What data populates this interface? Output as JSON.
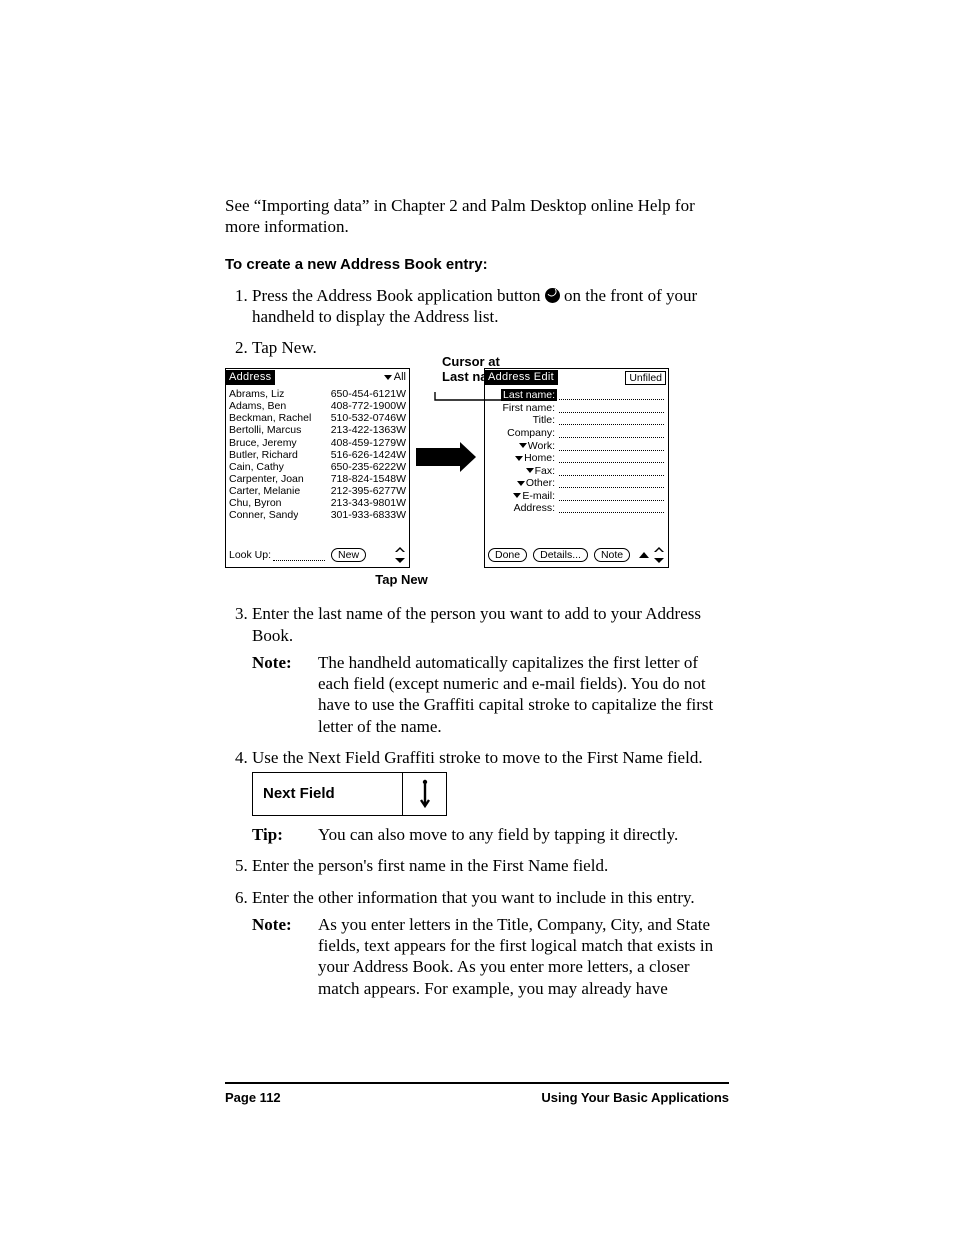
{
  "intro_text": "See “Importing data” in Chapter 2 and Palm Desktop online Help for more information.",
  "heading": "To create a new Address Book entry:",
  "steps": {
    "s1a": "Press the Address Book application button ",
    "s1b": " on the front of your handheld to display the Address list.",
    "s2": "Tap New.",
    "s3": "Enter the last name of the person you want to add to your Address Book.",
    "note3_label": "Note:",
    "note3_text": "The handheld automatically capitalizes the first letter of each field (except numeric and e-mail fields). You do not have to use the Graffiti capital stroke to capitalize the first letter of the name.",
    "s4": "Use the Next Field Graffiti stroke to move to the First Name field.",
    "tip_label": "Tip:",
    "tip_text": "You can also move to any field by tapping it directly.",
    "s5": "Enter the person's first name in the First Name field.",
    "s6": "Enter the other information that you want to include in this entry.",
    "note6_label": "Note:",
    "note6_text": "As you enter letters in the Title, Company, City, and State fields, text appears for the first logical match that exists in your Address Book. As you enter more letters, a closer match appears. For example, you may already have"
  },
  "annotations": {
    "cursor": "Cursor at Last name",
    "tap_new": "Tap New",
    "next_field": "Next Field"
  },
  "address_screen": {
    "title": "Address",
    "category": "All",
    "rows": [
      {
        "name": "Abrams, Liz",
        "num": "650-454-6121W"
      },
      {
        "name": "Adams, Ben",
        "num": "408-772-1900W"
      },
      {
        "name": "Beckman, Rachel",
        "num": "510-532-0746W"
      },
      {
        "name": "Bertolli, Marcus",
        "num": "213-422-1363W"
      },
      {
        "name": "Bruce, Jeremy",
        "num": "408-459-1279W"
      },
      {
        "name": "Butler, Richard",
        "num": "516-626-1424W"
      },
      {
        "name": "Cain, Cathy",
        "num": "650-235-6222W"
      },
      {
        "name": "Carpenter, Joan",
        "num": "718-824-1548W"
      },
      {
        "name": "Carter, Melanie",
        "num": "212-395-6277W"
      },
      {
        "name": "Chu, Byron",
        "num": "213-343-9801W"
      },
      {
        "name": "Conner, Sandy",
        "num": "301-933-6833W"
      }
    ],
    "lookup": "Look Up:",
    "new_btn": "New"
  },
  "edit_screen": {
    "title": "Address Edit",
    "category": "Unfiled",
    "fields": [
      {
        "label": "Last name:",
        "highlight": true,
        "dropdown": false
      },
      {
        "label": "First name:",
        "highlight": false,
        "dropdown": false
      },
      {
        "label": "Title:",
        "highlight": false,
        "dropdown": false
      },
      {
        "label": "Company:",
        "highlight": false,
        "dropdown": false
      },
      {
        "label": "Work:",
        "highlight": false,
        "dropdown": true
      },
      {
        "label": "Home:",
        "highlight": false,
        "dropdown": true
      },
      {
        "label": "Fax:",
        "highlight": false,
        "dropdown": true
      },
      {
        "label": "Other:",
        "highlight": false,
        "dropdown": true
      },
      {
        "label": "E-mail:",
        "highlight": false,
        "dropdown": true
      },
      {
        "label": "Address:",
        "highlight": false,
        "dropdown": false
      }
    ],
    "done": "Done",
    "details": "Details...",
    "note": "Note"
  },
  "footer": {
    "left": "Page 112",
    "right": "Using Your Basic Applications"
  }
}
